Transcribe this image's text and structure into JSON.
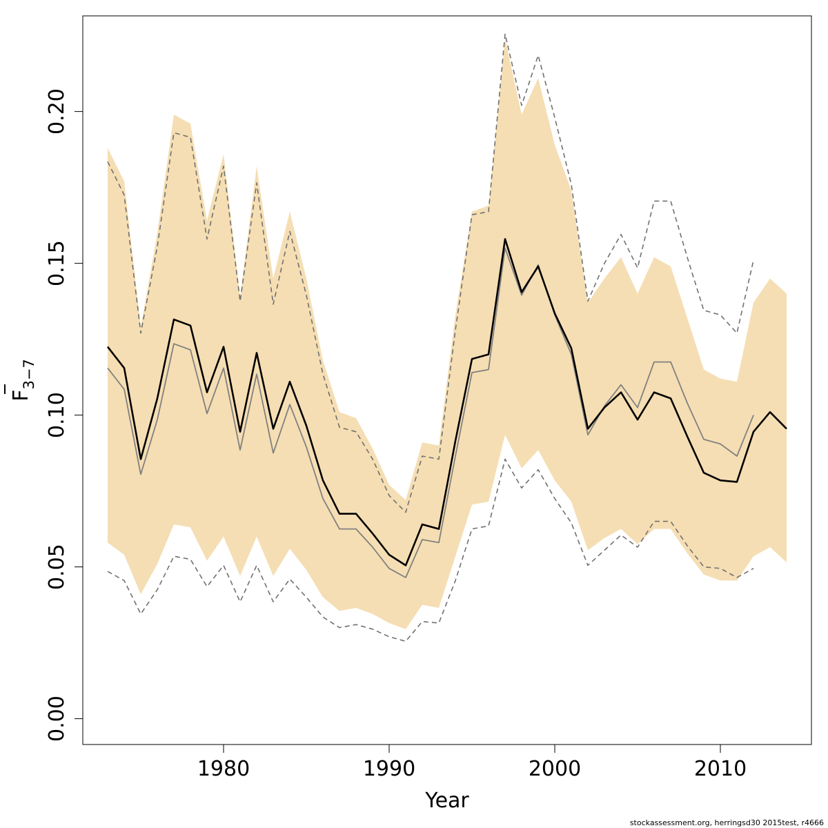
{
  "chart_data": {
    "type": "line",
    "xlabel": "Year",
    "ylabel": {
      "base": "F",
      "subscript": "3−7"
    },
    "xlim": [
      1971.5,
      2015.5
    ],
    "ylim": [
      -0.0085,
      0.2315
    ],
    "x_ticks": [
      1980,
      1990,
      2000,
      2010
    ],
    "y_ticks": [
      "0.00",
      "0.05",
      "0.10",
      "0.15",
      "0.20"
    ],
    "grid": false,
    "legend": "none",
    "colors": {
      "band": "#f5deb3",
      "current": "#000000",
      "previous": "#808080",
      "previous_ci": "#707070"
    },
    "x": [
      1973,
      1974,
      1975,
      1976,
      1977,
      1978,
      1979,
      1980,
      1981,
      1982,
      1983,
      1984,
      1985,
      1986,
      1987,
      1988,
      1989,
      1990,
      1991,
      1992,
      1993,
      1994,
      1995,
      1996,
      1997,
      1998,
      1999,
      2000,
      2001,
      2002,
      2003,
      2004,
      2005,
      2006,
      2007,
      2008,
      2009,
      2010,
      2011,
      2012,
      2013,
      2014
    ],
    "series": [
      {
        "role": "current_confidence_band",
        "upper": [
          0.188,
          0.177,
          0.129,
          0.16,
          0.199,
          0.196,
          0.164,
          0.186,
          0.139,
          0.182,
          0.145,
          0.167,
          0.145,
          0.118,
          0.101,
          0.099,
          0.089,
          0.077,
          0.072,
          0.091,
          0.09,
          0.133,
          0.167,
          0.169,
          0.224,
          0.199,
          0.211,
          0.189,
          0.174,
          0.137,
          0.145,
          0.152,
          0.14,
          0.152,
          0.149,
          0.132,
          0.115,
          0.112,
          0.111,
          0.137,
          0.145,
          0.14
        ],
        "lower": [
          0.058,
          0.054,
          0.041,
          0.051,
          0.064,
          0.063,
          0.052,
          0.06,
          0.047,
          0.06,
          0.047,
          0.056,
          0.049,
          0.04,
          0.0355,
          0.0365,
          0.0345,
          0.0315,
          0.0295,
          0.0375,
          0.0365,
          0.0535,
          0.0705,
          0.0715,
          0.0935,
          0.0825,
          0.0885,
          0.0785,
          0.0715,
          0.0555,
          0.0595,
          0.0625,
          0.0575,
          0.0625,
          0.0625,
          0.0545,
          0.0475,
          0.0455,
          0.0455,
          0.0535,
          0.0565,
          0.0515
        ]
      },
      {
        "role": "current_estimate",
        "values": [
          0.1225,
          0.1155,
          0.0855,
          0.1055,
          0.1315,
          0.1295,
          0.1075,
          0.1225,
          0.0945,
          0.1205,
          0.0955,
          0.111,
          0.0965,
          0.0785,
          0.0675,
          0.0675,
          0.061,
          0.054,
          0.0505,
          0.064,
          0.0625,
          0.0915,
          0.1185,
          0.12,
          0.158,
          0.1405,
          0.149,
          0.1335,
          0.122,
          0.0955,
          0.1025,
          0.1075,
          0.0985,
          0.1075,
          0.1055,
          0.093,
          0.081,
          0.0785,
          0.078,
          0.0945,
          0.101,
          0.0955
        ]
      },
      {
        "role": "previous_estimate",
        "values": [
          0.1155,
          0.1085,
          0.0805,
          0.0985,
          0.1235,
          0.1215,
          0.1005,
          0.1155,
          0.0885,
          0.1135,
          0.0875,
          0.1035,
          0.0895,
          0.0725,
          0.0625,
          0.0625,
          0.0565,
          0.0495,
          0.0465,
          0.059,
          0.058,
          0.0865,
          0.114,
          0.115,
          0.155,
          0.1395,
          0.1495,
          0.133,
          0.12,
          0.0935,
          0.103,
          0.11,
          0.1025,
          0.1175,
          0.1175,
          0.104,
          0.092,
          0.0905,
          0.0865,
          0.1,
          null,
          null
        ]
      },
      {
        "role": "previous_confidence_upper",
        "values": [
          0.1835,
          0.1725,
          0.127,
          0.1555,
          0.193,
          0.1915,
          0.158,
          0.182,
          0.1375,
          0.1765,
          0.1365,
          0.1605,
          0.1395,
          0.1135,
          0.096,
          0.0945,
          0.0855,
          0.0735,
          0.068,
          0.0865,
          0.0855,
          0.128,
          0.166,
          0.167,
          0.2255,
          0.202,
          0.2185,
          0.198,
          0.176,
          0.1375,
          0.15,
          0.1595,
          0.1485,
          0.1705,
          0.1705,
          0.152,
          0.1345,
          0.133,
          0.127,
          0.151,
          null,
          null
        ]
      },
      {
        "role": "previous_confidence_lower",
        "values": [
          0.0485,
          0.0455,
          0.0345,
          0.0425,
          0.0535,
          0.0525,
          0.0435,
          0.0505,
          0.0385,
          0.0505,
          0.0385,
          0.046,
          0.04,
          0.0335,
          0.03,
          0.031,
          0.0295,
          0.027,
          0.0255,
          0.032,
          0.0315,
          0.0455,
          0.0625,
          0.0635,
          0.0855,
          0.076,
          0.082,
          0.0725,
          0.0645,
          0.0505,
          0.0555,
          0.0605,
          0.0565,
          0.065,
          0.065,
          0.057,
          0.05,
          0.0495,
          0.0465,
          0.0495,
          null,
          null
        ]
      }
    ],
    "footer_note": "stockassessment.org, herringsd30  2015test, r4666"
  }
}
